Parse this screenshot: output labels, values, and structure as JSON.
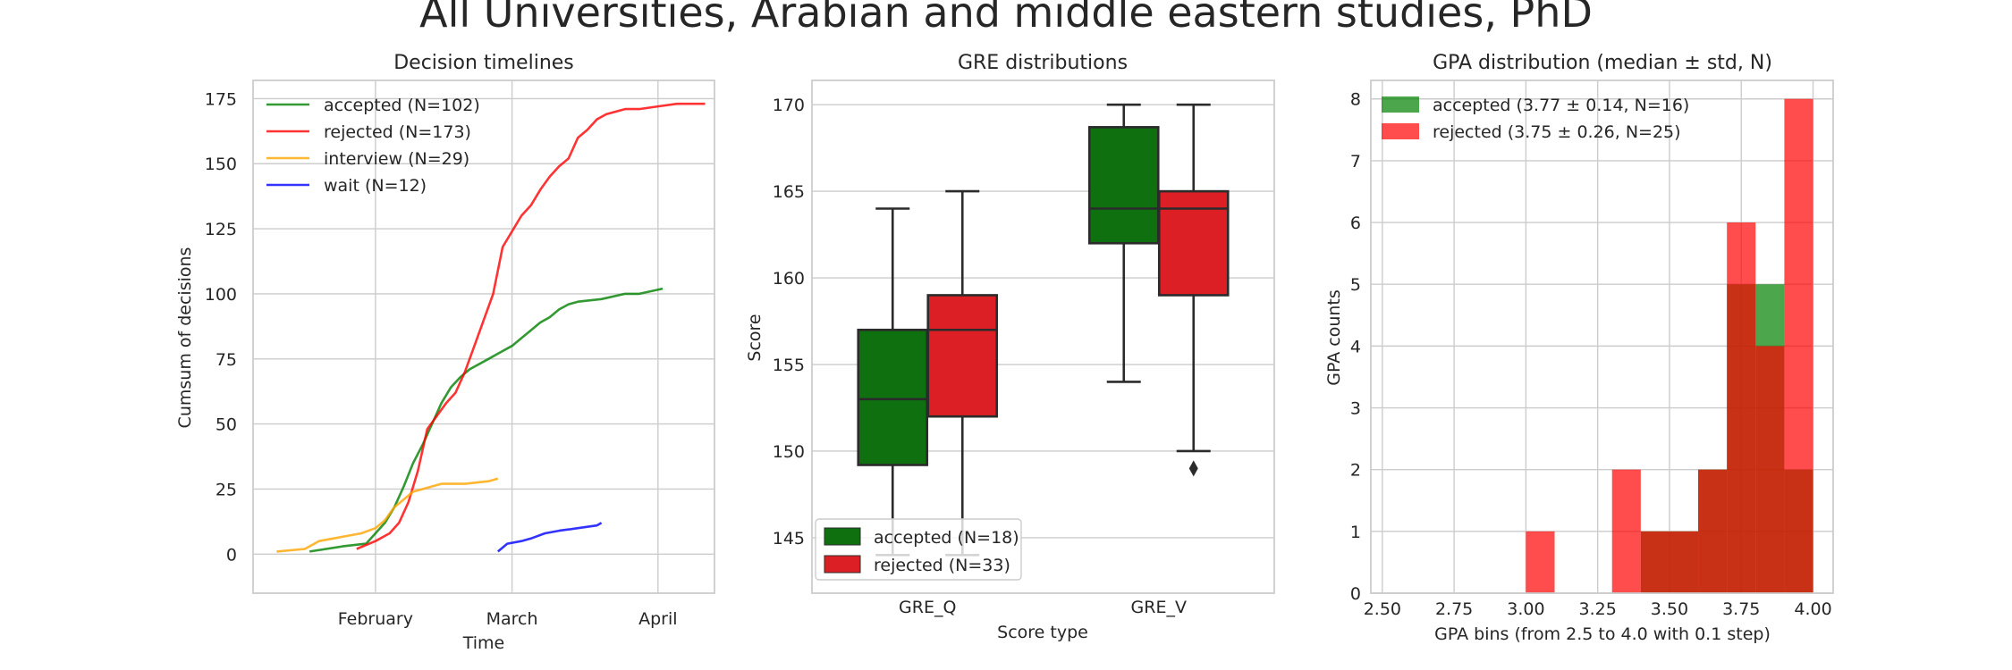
{
  "figure": {
    "suptitle": "All Universities, Arabian and middle eastern studies, PhD"
  },
  "colors": {
    "accepted": "#008000",
    "rejected": "#ff0000",
    "interview": "#ffa500",
    "wait": "#0000ff",
    "box_accepted": "#0f7010",
    "box_rejected": "#dc1f24"
  },
  "chart_data": [
    {
      "type": "line",
      "title": "Decision timelines",
      "xlabel": "Time",
      "ylabel": "Cumsum of decisions",
      "x_ticks": [
        "February",
        "March",
        "April"
      ],
      "x_range": [
        "2020-01-06",
        "2020-04-13"
      ],
      "ylim": [
        -15,
        182
      ],
      "y_ticks": [
        0,
        25,
        50,
        75,
        100,
        125,
        150,
        175
      ],
      "grid": true,
      "legend": "top-left",
      "series": [
        {
          "name": "accepted (N=102)",
          "key": "accepted",
          "x": [
            "2020-01-18",
            "2020-01-25",
            "2020-01-30",
            "2020-02-01",
            "2020-02-03",
            "2020-02-05",
            "2020-02-07",
            "2020-02-09",
            "2020-02-11",
            "2020-02-13",
            "2020-02-15",
            "2020-02-17",
            "2020-02-19",
            "2020-02-21",
            "2020-02-23",
            "2020-02-25",
            "2020-02-27",
            "2020-03-01",
            "2020-03-03",
            "2020-03-05",
            "2020-03-07",
            "2020-03-09",
            "2020-03-11",
            "2020-03-13",
            "2020-03-15",
            "2020-03-20",
            "2020-03-25",
            "2020-03-28",
            "2020-04-02"
          ],
          "y": [
            1,
            3,
            4,
            8,
            12,
            18,
            26,
            35,
            42,
            50,
            58,
            64,
            68,
            71,
            73,
            75,
            77,
            80,
            83,
            86,
            89,
            91,
            94,
            96,
            97,
            98,
            100,
            100,
            102
          ]
        },
        {
          "name": "rejected (N=173)",
          "key": "rejected",
          "x": [
            "2020-01-28",
            "2020-02-01",
            "2020-02-04",
            "2020-02-06",
            "2020-02-08",
            "2020-02-10",
            "2020-02-12",
            "2020-02-14",
            "2020-02-16",
            "2020-02-18",
            "2020-02-20",
            "2020-02-22",
            "2020-02-24",
            "2020-02-26",
            "2020-02-28",
            "2020-03-01",
            "2020-03-03",
            "2020-03-05",
            "2020-03-07",
            "2020-03-09",
            "2020-03-11",
            "2020-03-13",
            "2020-03-15",
            "2020-03-17",
            "2020-03-19",
            "2020-03-21",
            "2020-03-23",
            "2020-03-25",
            "2020-03-28",
            "2020-04-01",
            "2020-04-05",
            "2020-04-11"
          ],
          "y": [
            2,
            5,
            8,
            12,
            20,
            32,
            48,
            53,
            58,
            62,
            70,
            80,
            90,
            100,
            118,
            124,
            130,
            134,
            140,
            145,
            149,
            152,
            160,
            163,
            167,
            169,
            170,
            171,
            171,
            172,
            173,
            173
          ]
        },
        {
          "name": "interview (N=29)",
          "key": "interview",
          "x": [
            "2020-01-11",
            "2020-01-17",
            "2020-01-20",
            "2020-01-23",
            "2020-01-26",
            "2020-01-29",
            "2020-02-01",
            "2020-02-03",
            "2020-02-05",
            "2020-02-07",
            "2020-02-09",
            "2020-02-11",
            "2020-02-13",
            "2020-02-15",
            "2020-02-20",
            "2020-02-25",
            "2020-02-27"
          ],
          "y": [
            1,
            2,
            5,
            6,
            7,
            8,
            10,
            13,
            18,
            21,
            24,
            25,
            26,
            27,
            27,
            28,
            29
          ]
        },
        {
          "name": "wait (N=12)",
          "key": "wait",
          "x": [
            "2020-02-27",
            "2020-02-29",
            "2020-03-03",
            "2020-03-05",
            "2020-03-08",
            "2020-03-11",
            "2020-03-15",
            "2020-03-19",
            "2020-03-20"
          ],
          "y": [
            1,
            4,
            5,
            6,
            8,
            9,
            10,
            11,
            12
          ]
        }
      ]
    },
    {
      "type": "box",
      "title": "GRE distributions",
      "xlabel": "Score type",
      "ylabel": "Score",
      "categories": [
        "GRE_Q",
        "GRE_V"
      ],
      "ylim": [
        141.8,
        171.4
      ],
      "y_ticks": [
        145,
        150,
        155,
        160,
        165,
        170
      ],
      "grid": true,
      "legend": "bottom-left",
      "series": [
        {
          "name": "accepted (N=18)",
          "key": "box_accepted",
          "boxes": [
            {
              "whislo": 144.0,
              "q1": 149.2,
              "med": 153.0,
              "q3": 157.0,
              "whishi": 164.0
            },
            {
              "whislo": 154.0,
              "q1": 162.0,
              "med": 164.0,
              "q3": 168.7,
              "whishi": 170.0
            }
          ]
        },
        {
          "name": "rejected (N=33)",
          "key": "box_rejected",
          "boxes": [
            {
              "whislo": 144.0,
              "q1": 152.0,
              "med": 157.0,
              "q3": 159.0,
              "whishi": 165.0
            },
            {
              "whislo": 150.0,
              "q1": 159.0,
              "med": 164.0,
              "q3": 165.0,
              "whishi": 170.0,
              "fliers": [
                149.0
              ]
            }
          ]
        }
      ]
    },
    {
      "type": "histogram",
      "title": "GPA distribution (median ± std, N)",
      "xlabel": "GPA bins (from 2.5 to 4.0 with 0.1 step)",
      "ylabel": "GPA counts",
      "xlim": [
        2.46,
        4.07
      ],
      "x_ticks": [
        "2.50",
        "2.75",
        "3.00",
        "3.25",
        "3.50",
        "3.75",
        "4.00"
      ],
      "ylim": [
        0,
        8.3
      ],
      "y_ticks": [
        0,
        1,
        2,
        3,
        4,
        5,
        6,
        7,
        8
      ],
      "bins": [
        2.5,
        2.6,
        2.7,
        2.8,
        2.9,
        3.0,
        3.1,
        3.2,
        3.3,
        3.4,
        3.5,
        3.6,
        3.7,
        3.8,
        3.9,
        4.0
      ],
      "grid": true,
      "legend": "top-left",
      "series": [
        {
          "name": "accepted (3.77 ± 0.14, N=16)",
          "key": "accepted",
          "opacity": 0.7,
          "counts": [
            0,
            0,
            0,
            0,
            0,
            0,
            0,
            0,
            0,
            1,
            1,
            2,
            5,
            5,
            2
          ]
        },
        {
          "name": "rejected (3.75 ± 0.26, N=25)",
          "key": "rejected",
          "opacity": 0.7,
          "counts": [
            0,
            0,
            0,
            0,
            0,
            1,
            0,
            0,
            2,
            1,
            1,
            2,
            6,
            4,
            8
          ]
        }
      ]
    }
  ]
}
